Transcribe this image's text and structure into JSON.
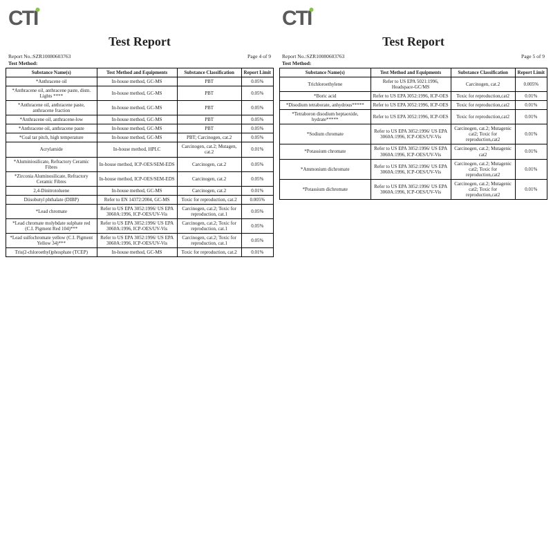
{
  "logo_text": "CTI",
  "report_title": "Test Report",
  "report_no_label": "Report No.:",
  "report_no_value": "SZR10080603763",
  "test_method_label": "Test Method:",
  "columns": [
    "Substance Name(s)",
    "Test Method and Equipments",
    "Substance Classification",
    "Report Limit"
  ],
  "page_left": {
    "page_label": "Page 4 of 9",
    "rows": [
      [
        "*Anthracene oil",
        "In-house method, GC-MS",
        "PBT",
        "0.05%"
      ],
      [
        "*Anthracene oil, anthracene paste, distn. Lights ****",
        "In-house method, GC-MS",
        "PBT",
        "0.05%"
      ],
      [
        "*Anthracene oil, anthracene paste, anthracene fraction",
        "In-house method, GC-MS",
        "PBT",
        "0.05%"
      ],
      [
        "*Anthracene oil, anthracene-low",
        "In-house method, GC-MS",
        "PBT",
        "0.05%"
      ],
      [
        "*Anthracene oil, anthracene paste",
        "In-house method, GC-MS",
        "PBT",
        "0.05%"
      ],
      [
        "*Coal tar pitch, high temperature",
        "In-house method, GC-MS",
        "PBT; Carcinogen, cat.2",
        "0.05%"
      ],
      [
        "Acrylamide",
        "In-house method, HPLC",
        "Carcinogen, cat.2; Mutagen, cat.2",
        "0.01%"
      ],
      [
        "*Aluminiosilicate, Refractory Ceramic Fibres",
        "In-house method, ICP-OES/SEM-EDS",
        "Carcinogen, cat.2",
        "0.05%"
      ],
      [
        "*Zirconia Aluminosilicate, Refractory Ceramic Fibres",
        "In-house method, ICP-OES/SEM-EDS",
        "Carcinogen, cat.2",
        "0.05%"
      ],
      [
        "2,4-Dinitrotoluene",
        "In-house method, GC-MS",
        "Carcinogen, cat.2",
        "0.01%"
      ],
      [
        "Diisobutyl phthalate (DIBP)",
        "Refer to EN 14372:2004, GC-MS",
        "Toxic for reproduction, cat.2",
        "0.005%"
      ],
      [
        "*Lead chromate",
        "Refer to US EPA 3052:1996/ US EPA 3060A:1996, ICP-OES/UV-Vis",
        "Carcinogen, cat.2; Toxic for reproduction, cat.1",
        "0.05%"
      ],
      [
        "*Lead chromate molybdate sulphate red (C.I. Pigment Red 104)***",
        "Refer to US EPA 3052:1996/ US EPA 3060A:1996, ICP-OES/UV-Vis",
        "Carcinogen, cat.2; Toxic for reproduction, cat.1",
        "0.05%"
      ],
      [
        "*Lead sulfochromate yellow (C.I. Pigment Yellow 34)***",
        "Refer to US EPA 3052:1996/ US EPA 3060A:1996, ICP-OES/UV-Vis",
        "Carcinogen, cat.2; Toxic for reproduction, cat.1",
        "0.05%"
      ],
      [
        "Tris(2-chloroethyl)phosphate (TCEP)",
        "In-house method, GC-MS",
        "Toxic for reproduction, cat.2",
        "0.01%"
      ]
    ]
  },
  "page_right": {
    "page_label": "Page 5 of 9",
    "rows": [
      [
        "Trichloroethylene",
        "Refer to US EPA 5021:1996, Headspace-GC/MS",
        "Carcinogen, cat.2",
        "0.005%"
      ],
      [
        "*Boric acid",
        "Refer to US EPA 3052:1996, ICP-OES",
        "Toxic for reproduction,cat2",
        "0.01%"
      ],
      [
        "*Disodium tetraborate, anhydrous*****",
        "Refer to US EPA 3052:1996, ICP-OES",
        "Toxic for reproduction,cat2",
        "0.01%"
      ],
      [
        "*Tetraboron disodium heptaoxide, hydrate*****",
        "Refer to US EPA 3052:1996, ICP-OES",
        "Toxic for reproduction,cat2",
        "0.01%"
      ],
      [
        "*Sodium chromate",
        "Refer to US EPA 3052:1996/ US EPA 3060A:1996, ICP-OES/UV-Vis",
        "Carcinogen, cat.2; Mutagenic cat2; Toxic for reproduction,cat2",
        "0.01%"
      ],
      [
        "*Potassium chromate",
        "Refer to US EPA 3052:1996/ US EPA 3060A:1996, ICP-OES/UV-Vis",
        "Carcinogen, cat.2; Mutagenic cat2",
        "0.01%"
      ],
      [
        "*Ammonium dichromate",
        "Refer to US EPA 3052:1996/ US EPA 3060A:1996, ICP-OES/UV-Vis",
        "Carcinogen, cat.2; Mutagenic cat2; Toxic for reproduction,cat2",
        "0.01%"
      ],
      [
        "*Potassium dichromate",
        "Refer to US EPA 3052:1996/ US EPA 3060A:1996, ICP-OES/UV-Vis",
        "Carcinogen, cat.2; Mutagenic cat2; Toxic for reproduction,cat2",
        "0.01%"
      ]
    ]
  },
  "style": {
    "background_color": "#ffffff",
    "text_color": "#222222",
    "border_color": "#000000",
    "logo_color": "#5a5a5a",
    "logo_dot_color": "#8bc34a",
    "title_fontsize_pt": 18,
    "table_fontsize_pt": 7,
    "meta_fontsize_pt": 7.5,
    "logo_fontsize_pt": 30
  }
}
